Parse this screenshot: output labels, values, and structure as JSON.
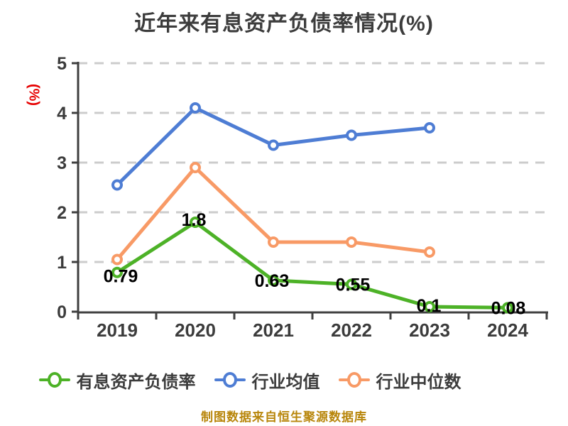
{
  "header": {
    "title": "近年来有息资产负债率情况(%)"
  },
  "y_axis": {
    "name": "(%)",
    "name_color": "#e60000"
  },
  "footer": {
    "source_note": "制图数据来自恒生聚源数据库",
    "color": "#b8860b"
  },
  "legend": {
    "position": "bottom",
    "items": [
      {
        "label": "有息资产负债率",
        "color": "#4db227"
      },
      {
        "label": "行业均值",
        "color": "#4e7dd4"
      },
      {
        "label": "行业中位数",
        "color": "#f89a66"
      }
    ]
  },
  "chart_data": {
    "type": "line",
    "title": "近年来有息资产负债率情况(%)",
    "xlabel": "",
    "ylabel": "(%)",
    "categories": [
      "2019",
      "2020",
      "2021",
      "2022",
      "2023",
      "2024"
    ],
    "series": [
      {
        "name": "有息资产负债率",
        "color": "#4db227",
        "values": [
          0.79,
          1.8,
          0.63,
          0.55,
          0.1,
          0.08
        ],
        "point_labels": [
          "0.79",
          "1.8",
          "0.63",
          "0.55",
          "0.1",
          "0.08"
        ]
      },
      {
        "name": "行业均值",
        "color": "#4e7dd4",
        "values": [
          2.55,
          4.1,
          3.35,
          3.55,
          3.7,
          null
        ],
        "point_labels": []
      },
      {
        "name": "行业中位数",
        "color": "#f89a66",
        "values": [
          1.05,
          2.9,
          1.4,
          1.4,
          1.2,
          null
        ],
        "point_labels": []
      }
    ],
    "ylim": [
      0,
      5
    ],
    "yticks": [
      0,
      1,
      2,
      3,
      4,
      5
    ],
    "grid": "horizontal dashed",
    "grid_color": "#cccccc",
    "axis_color": "#3f3f3f",
    "tick_label_color": "#3c3c3c",
    "point_label_color": "#000000",
    "marker_style": "hollow-circle",
    "legend_position": "bottom"
  }
}
